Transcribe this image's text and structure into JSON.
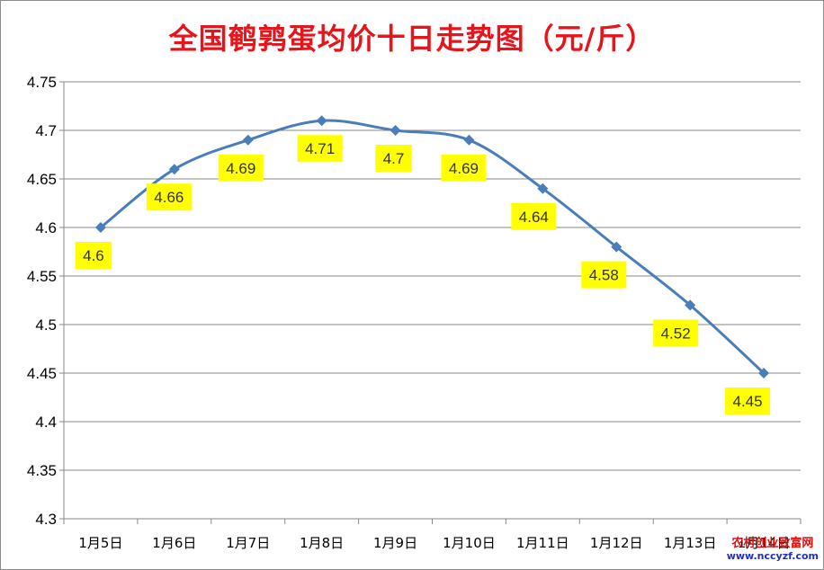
{
  "chart_data": {
    "type": "line",
    "title": "全国鹌鹑蛋均价十日走势图（元/斤）",
    "categories": [
      "1月5日",
      "1月6日",
      "1月7日",
      "1月8日",
      "1月9日",
      "1月10日",
      "1月11日",
      "1月12日",
      "1月13日",
      "1月14日"
    ],
    "series": [
      {
        "values": [
          4.6,
          4.66,
          4.69,
          4.71,
          4.7,
          4.69,
          4.64,
          4.58,
          4.52,
          4.45
        ]
      }
    ],
    "data_labels": [
      "4.6",
      "4.66",
      "4.69",
      "4.71",
      "4.7",
      "4.69",
      "4.64",
      "4.58",
      "4.52",
      "4.45"
    ],
    "yticks": [
      "4.3",
      "4.35",
      "4.4",
      "4.45",
      "4.5",
      "4.55",
      "4.6",
      "4.65",
      "4.7",
      "4.75"
    ],
    "ylim": [
      4.3,
      4.75
    ],
    "grid": true,
    "line_color": "#4a7ebb",
    "label_bg": "#ffff00"
  },
  "watermark": {
    "line1": "农村创业致富网",
    "line2": "www.nccyzf.com"
  }
}
